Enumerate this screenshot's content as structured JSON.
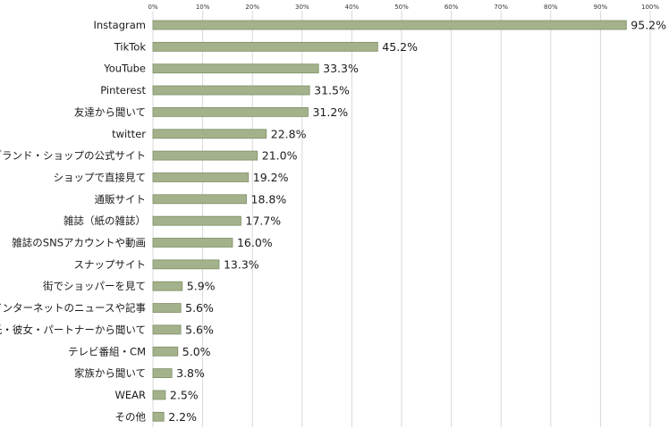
{
  "chart_data": {
    "type": "bar",
    "orientation": "horizontal",
    "title": "",
    "xlabel": "",
    "ylabel": "",
    "xlim": [
      0,
      100
    ],
    "x_ticks": [
      0,
      10,
      20,
      30,
      40,
      50,
      60,
      70,
      80,
      90,
      100
    ],
    "x_tick_labels": [
      "0%",
      "10%",
      "20%",
      "30%",
      "40%",
      "50%",
      "60%",
      "70%",
      "80%",
      "90%",
      "100%"
    ],
    "grid": true,
    "legend": "none",
    "bar_color": "#a3b28a",
    "bar_stroke": "#7f8e68",
    "categories": [
      "Instagram",
      "TikTok",
      "YouTube",
      "Pinterest",
      "友達から聞いて",
      "twitter",
      "ブランド・ショップの公式サイト",
      "ショップで直接見て",
      "通販サイト",
      "雑誌（紙の雑誌）",
      "雑誌のSNSアカウントや動画",
      "スナップサイト",
      "街でショッパーを見て",
      "インターネットのニュースや記事",
      "彼氏・彼女・パートナーから聞いて",
      "テレビ番組・CM",
      "家族から聞いて",
      "WEAR",
      "その他"
    ],
    "values": [
      95.2,
      45.2,
      33.3,
      31.5,
      31.2,
      22.8,
      21.0,
      19.2,
      18.8,
      17.7,
      16.0,
      13.3,
      5.9,
      5.6,
      5.6,
      5.0,
      3.8,
      2.5,
      2.2
    ],
    "value_labels": [
      "95.2%",
      "45.2%",
      "33.3%",
      "31.5%",
      "31.2%",
      "22.8%",
      "21.0%",
      "19.2%",
      "18.8%",
      "17.7%",
      "16.0%",
      "13.3%",
      "5.9%",
      "5.6%",
      "5.6%",
      "5.0%",
      "3.8%",
      "2.5%",
      "2.2%"
    ]
  }
}
